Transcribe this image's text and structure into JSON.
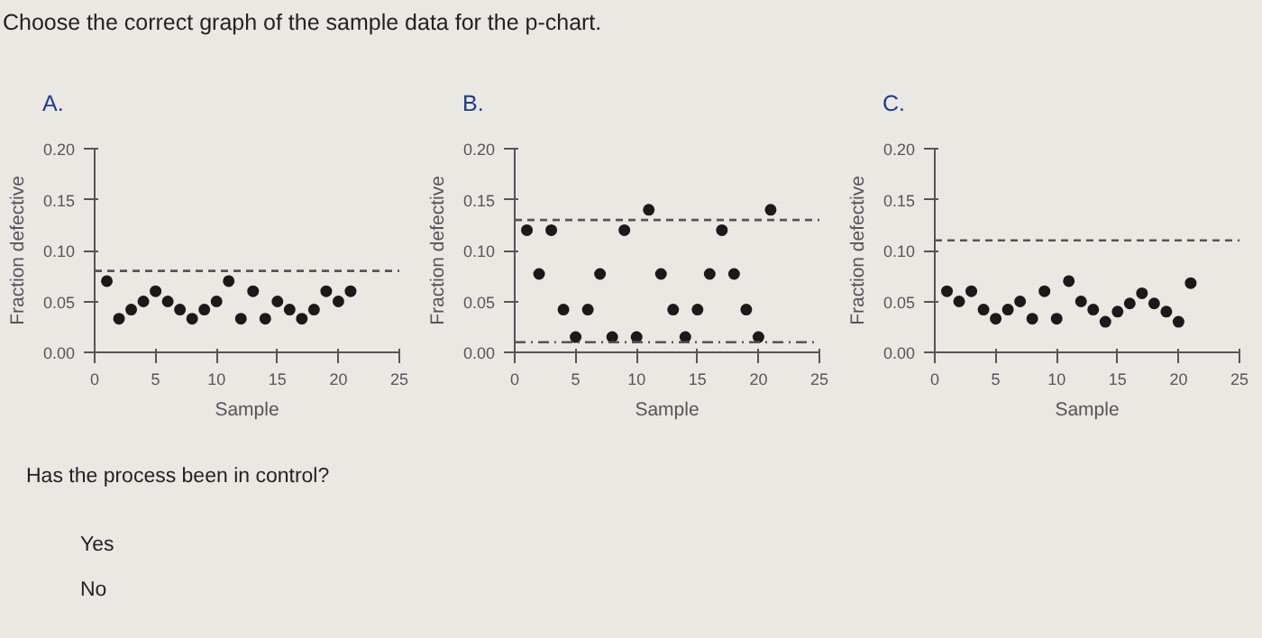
{
  "chart_data": [
    {
      "type": "other",
      "title": "Choose the correct graph of the sample data for the p-chart."
    },
    {
      "type": "scatter",
      "title": "A.",
      "xlabel": "Sample",
      "ylabel": "Fraction defective",
      "marker": "circle",
      "grid": false,
      "xlim": [
        0,
        25
      ],
      "ylim": [
        0,
        0.2
      ],
      "xticks": [
        0,
        5,
        10,
        15,
        20,
        25
      ],
      "yticks": [
        {
          "value": 0,
          "label": "0.00"
        },
        {
          "value": 0.05,
          "label": "0.05"
        },
        {
          "value": 0.1,
          "label": "0.10"
        },
        {
          "value": 0.15,
          "label": "0.15"
        },
        {
          "value": 0.2,
          "label": "0.20"
        }
      ],
      "x": [
        1,
        2,
        3,
        4,
        5,
        6,
        7,
        8,
        9,
        10,
        11,
        12,
        13,
        14,
        15,
        16,
        17,
        18,
        19,
        20,
        21
      ],
      "series": [
        {
          "color": "#1a1a1a",
          "values": [
            0.07,
            0.033,
            0.042,
            0.05,
            0.06,
            0.05,
            0.042,
            0.033,
            0.042,
            0.05,
            0.07,
            0.033,
            0.06,
            0.033,
            0.05,
            0.042,
            0.033,
            0.042,
            0.06,
            0.05,
            0.06
          ]
        }
      ],
      "ref_lines": [
        {
          "axis": "y",
          "value": 0.08,
          "line_style": "dashed",
          "color": "#555555"
        }
      ]
    },
    {
      "type": "scatter",
      "title": "B.",
      "xlabel": "Sample",
      "ylabel": "Fraction defective",
      "marker": "circle",
      "grid": false,
      "xlim": [
        0,
        25
      ],
      "ylim": [
        0,
        0.2
      ],
      "xticks": [
        0,
        5,
        10,
        15,
        20,
        25
      ],
      "yticks": [
        {
          "value": 0,
          "label": "0.00"
        },
        {
          "value": 0.05,
          "label": "0.05"
        },
        {
          "value": 0.1,
          "label": "0.10"
        },
        {
          "value": 0.15,
          "label": "0.15"
        },
        {
          "value": 0.2,
          "label": "0.20"
        }
      ],
      "x": [
        1,
        2,
        3,
        4,
        5,
        6,
        7,
        8,
        9,
        10,
        11,
        12,
        13,
        14,
        15,
        16,
        17,
        18,
        19,
        20,
        21
      ],
      "series": [
        {
          "color": "#1a1a1a",
          "values": [
            0.12,
            0.077,
            0.12,
            0.042,
            0.015,
            0.042,
            0.077,
            0.015,
            0.12,
            0.015,
            0.14,
            0.077,
            0.042,
            0.015,
            0.042,
            0.077,
            0.12,
            0.077,
            0.042,
            0.015,
            0.14
          ]
        }
      ],
      "ref_lines": [
        {
          "axis": "y",
          "value": 0.13,
          "line_style": "dashed",
          "color": "#555555"
        },
        {
          "axis": "y",
          "value": 0.01,
          "line_style": "dashdot",
          "color": "#555555"
        }
      ]
    },
    {
      "type": "scatter",
      "title": "C.",
      "xlabel": "Sample",
      "ylabel": "Fraction defective",
      "marker": "circle",
      "grid": false,
      "xlim": [
        0,
        25
      ],
      "ylim": [
        0,
        0.2
      ],
      "xticks": [
        0,
        5,
        10,
        15,
        20,
        25
      ],
      "yticks": [
        {
          "value": 0,
          "label": "0.00"
        },
        {
          "value": 0.05,
          "label": "0.05"
        },
        {
          "value": 0.1,
          "label": "0.10"
        },
        {
          "value": 0.15,
          "label": "0.15"
        },
        {
          "value": 0.2,
          "label": "0.20"
        }
      ],
      "x": [
        1,
        2,
        3,
        4,
        5,
        6,
        7,
        8,
        9,
        10,
        11,
        12,
        13,
        14,
        15,
        16,
        17,
        18,
        19,
        20,
        21
      ],
      "series": [
        {
          "color": "#1a1a1a",
          "values": [
            0.06,
            0.05,
            0.06,
            0.042,
            0.033,
            0.042,
            0.05,
            0.033,
            0.06,
            0.033,
            0.07,
            0.05,
            0.042,
            0.03,
            0.04,
            0.048,
            0.058,
            0.048,
            0.04,
            0.03,
            0.068
          ]
        }
      ],
      "ref_lines": [
        {
          "axis": "y",
          "value": 0.11,
          "line_style": "dashed",
          "color": "#555555"
        }
      ]
    },
    {
      "type": "other",
      "title": "Has the process been in control?",
      "annotations": [
        "Yes",
        "No"
      ]
    }
  ]
}
